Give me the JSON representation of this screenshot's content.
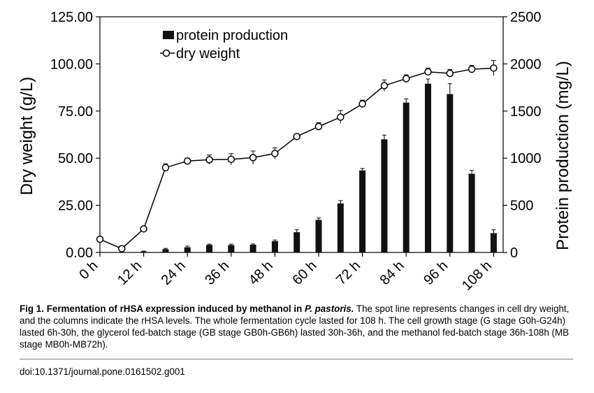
{
  "chart_data": {
    "type": "bar+line",
    "categories": [
      "0 h",
      "6 h",
      "12 h",
      "18 h",
      "24 h",
      "30 h",
      "36 h",
      "42 h",
      "48 h",
      "54 h",
      "60 h",
      "66 h",
      "72 h",
      "78 h",
      "84 h",
      "90 h",
      "96 h",
      "102 h",
      "108 h"
    ],
    "x_tick_labels": [
      "0 h",
      "12 h",
      "24 h",
      "36 h",
      "48 h",
      "60 h",
      "72 h",
      "84 h",
      "96 h",
      "108 h"
    ],
    "left_axis": {
      "label": "Dry weight (g/L)",
      "ylim": [
        0,
        125
      ],
      "ticks": [
        "0.00",
        "25.00",
        "50.00",
        "75.00",
        "100.00",
        "125.00"
      ]
    },
    "right_axis": {
      "label": "Protein production (mg/L)",
      "ylim": [
        0,
        2500
      ],
      "ticks": [
        "0",
        "500",
        "1000",
        "1500",
        "2000",
        "2500"
      ]
    },
    "series": [
      {
        "name": "protein production",
        "type": "bar",
        "axis": "right",
        "values": [
          null,
          null,
          10,
          35,
          55,
          80,
          78,
          82,
          120,
          215,
          345,
          520,
          870,
          1200,
          1590,
          1790,
          1680,
          835,
          205
        ],
        "errors": [
          null,
          null,
          5,
          8,
          12,
          8,
          10,
          8,
          12,
          25,
          20,
          30,
          20,
          45,
          40,
          50,
          110,
          35,
          35
        ]
      },
      {
        "name": "dry weight",
        "type": "line",
        "axis": "left",
        "values": [
          7,
          2,
          12.5,
          45,
          48.5,
          49.2,
          49.4,
          50.3,
          52.5,
          61.5,
          66.8,
          71.8,
          78.8,
          88.5,
          92.2,
          95.8,
          95.0,
          97.2,
          97.8
        ],
        "errors": [
          0,
          0,
          0,
          2,
          1.5,
          2.5,
          3,
          3.5,
          3,
          0,
          2,
          3.5,
          2,
          3,
          2,
          2,
          2,
          2,
          4
        ]
      }
    ],
    "legend": {
      "position": "top-left-inside",
      "entries": [
        "protein production",
        "dry weight"
      ]
    }
  },
  "caption": {
    "label": "Fig 1. Fermentation of rHSA expression induced by methanol in ",
    "species": "P. pastoris.",
    "body": " The spot line represents changes in cell dry weight, and the columns indicate the rHSA levels. The whole fermentation cycle lasted for 108 h. The cell growth stage (G stage G0h-G24h) lasted 6h-30h, the glycerol fed-batch stage (GB stage GB0h-GB6h) lasted 30h-36h, and the methanol fed-batch stage 36h-108h (MB stage MB0h-MB72h)."
  },
  "doi": "doi:10.1371/journal.pone.0161502.g001"
}
